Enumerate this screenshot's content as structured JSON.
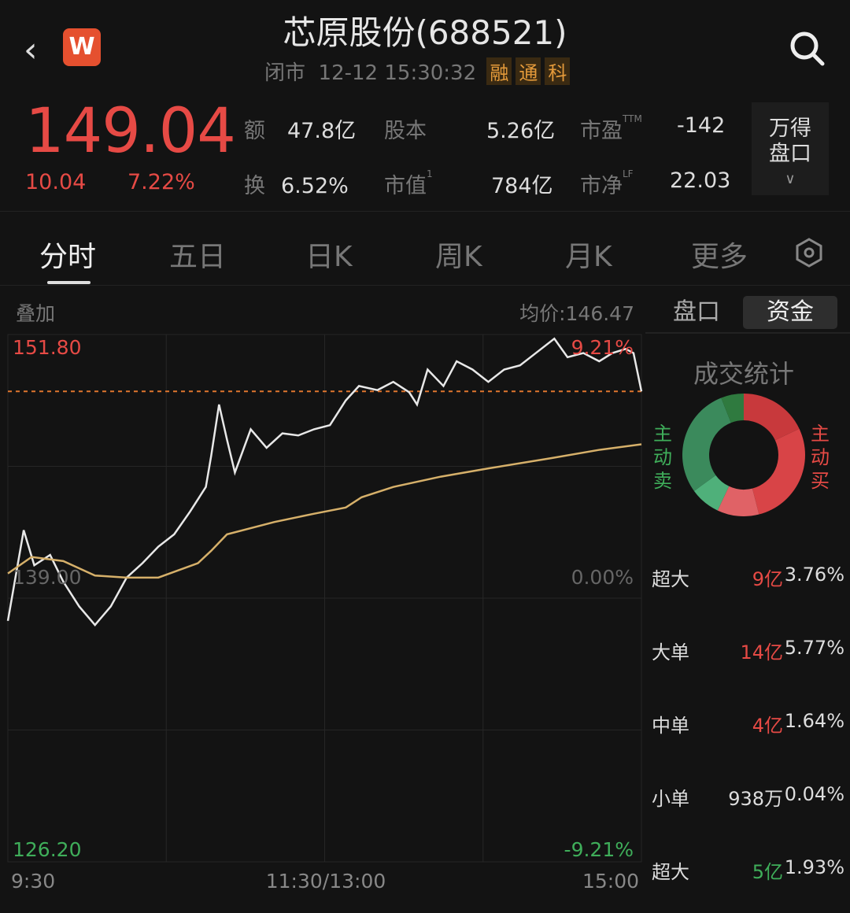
{
  "header": {
    "back_icon": "chevron-left-icon",
    "logo_text": "W",
    "title": "芯原股份(688521)",
    "status": "闭市",
    "datetime": "12-12 15:30:32",
    "tags": [
      "融",
      "通",
      "科"
    ],
    "search_icon": "search-icon"
  },
  "quote": {
    "price": "149.04",
    "change": "10.04",
    "change_pct": "7.22%",
    "stats": [
      {
        "label": "额",
        "value": "47.8亿"
      },
      {
        "label": "股本",
        "value": "5.26亿"
      },
      {
        "label": "市盈",
        "sup": "TTM",
        "value": "-142"
      },
      {
        "label": "换",
        "value": "6.52%"
      },
      {
        "label": "市值",
        "sup": "1",
        "value": "784亿"
      },
      {
        "label": "市净",
        "sup": "LF",
        "value": "22.03"
      }
    ],
    "wind_button": {
      "line1": "万得",
      "line2": "盘口"
    }
  },
  "tabs": [
    {
      "label": "分时",
      "active": true
    },
    {
      "label": "五日"
    },
    {
      "label": "日K"
    },
    {
      "label": "周K"
    },
    {
      "label": "月K"
    },
    {
      "label": "更多"
    }
  ],
  "settings_icon": "hexagon-settings-icon",
  "chart_data": {
    "type": "line",
    "overlay_label": "叠加",
    "avg_price_label": "均价:146.47",
    "y_labels": {
      "top": "151.80",
      "mid": "139.00",
      "bottom": "126.20",
      "top_pct": "9.21%",
      "mid_pct": "0.00%",
      "bottom_pct": "-9.21%"
    },
    "ylim": [
      126.2,
      151.8
    ],
    "prev_close": 139.0,
    "last": 149.04,
    "x_labels": [
      "9:30",
      "11:30/13:00",
      "15:00"
    ],
    "series": [
      {
        "type": "price",
        "color": "#e8e8e8",
        "points": [
          [
            "9:30",
            137.9
          ],
          [
            "9:36",
            142.3
          ],
          [
            "9:40",
            140.6
          ],
          [
            "9:46",
            141.1
          ],
          [
            "9:51",
            139.8
          ],
          [
            "9:57",
            138.6
          ],
          [
            "10:03",
            137.7
          ],
          [
            "10:09",
            138.6
          ],
          [
            "10:15",
            140.0
          ],
          [
            "10:21",
            140.7
          ],
          [
            "10:27",
            141.5
          ],
          [
            "10:33",
            142.1
          ],
          [
            "10:39",
            143.2
          ],
          [
            "10:45",
            144.4
          ],
          [
            "10:47",
            145.9
          ],
          [
            "10:50",
            148.4
          ],
          [
            "10:53",
            146.7
          ],
          [
            "10:56",
            145.1
          ],
          [
            "11:02",
            147.2
          ],
          [
            "11:08",
            146.3
          ],
          [
            "11:14",
            147.0
          ],
          [
            "11:20",
            146.9
          ],
          [
            "11:26",
            147.2
          ],
          [
            "13:02",
            147.4
          ],
          [
            "13:08",
            148.6
          ],
          [
            "13:13",
            149.3
          ],
          [
            "13:20",
            149.1
          ],
          [
            "13:26",
            149.5
          ],
          [
            "13:32",
            149.0
          ],
          [
            "13:35",
            148.4
          ],
          [
            "13:39",
            150.1
          ],
          [
            "13:45",
            149.3
          ],
          [
            "13:50",
            150.5
          ],
          [
            "13:56",
            150.1
          ],
          [
            "14:02",
            149.5
          ],
          [
            "14:08",
            150.1
          ],
          [
            "14:14",
            150.3
          ],
          [
            "14:20",
            150.9
          ],
          [
            "14:27",
            151.6
          ],
          [
            "14:32",
            150.7
          ],
          [
            "14:38",
            150.9
          ],
          [
            "14:44",
            150.5
          ],
          [
            "14:49",
            150.9
          ],
          [
            "14:54",
            151.1
          ],
          [
            "14:57",
            150.9
          ],
          [
            "15:00",
            149.04
          ]
        ]
      },
      {
        "type": "average",
        "color": "#d6b06a",
        "points": [
          [
            "9:30",
            140.2
          ],
          [
            "9:39",
            141.0
          ],
          [
            "9:51",
            140.8
          ],
          [
            "10:03",
            140.1
          ],
          [
            "10:15",
            140.0
          ],
          [
            "10:27",
            140.0
          ],
          [
            "10:42",
            140.7
          ],
          [
            "10:47",
            141.3
          ],
          [
            "10:53",
            142.1
          ],
          [
            "11:11",
            142.7
          ],
          [
            "11:26",
            143.1
          ],
          [
            "13:08",
            143.4
          ],
          [
            "13:14",
            143.9
          ],
          [
            "13:26",
            144.4
          ],
          [
            "13:44",
            144.9
          ],
          [
            "14:02",
            145.3
          ],
          [
            "14:26",
            145.8
          ],
          [
            "14:44",
            146.2
          ],
          [
            "15:00",
            146.47
          ]
        ]
      }
    ]
  },
  "panel": {
    "tabs": [
      {
        "label": "盘口"
      },
      {
        "label": "资金",
        "active": true
      }
    ],
    "title": "成交统计",
    "sell_label": "主动卖",
    "buy_label": "主动买",
    "donut": [
      {
        "pct": 18,
        "color": "#c8393c"
      },
      {
        "pct": 28,
        "color": "#d84447"
      },
      {
        "pct": 11,
        "color": "#e06266"
      },
      {
        "pct": 8,
        "color": "#4fb07a"
      },
      {
        "pct": 29,
        "color": "#3b8a5c"
      },
      {
        "pct": 6,
        "color": "#2f7a3f"
      }
    ],
    "rows": [
      {
        "label": "超大",
        "amount": "9亿",
        "pct": "3.76%",
        "color": "#e64a45"
      },
      {
        "label": "大单",
        "amount": "14亿",
        "pct": "5.77%",
        "color": "#e64a45"
      },
      {
        "label": "中单",
        "amount": "4亿",
        "pct": "1.64%",
        "color": "#e64a45"
      },
      {
        "label": "小单",
        "amount": "938万",
        "pct": "0.04%",
        "color": "#dddddd"
      },
      {
        "label": "超大",
        "amount": "5亿",
        "pct": "1.93%",
        "color": "#3fae5a"
      }
    ]
  }
}
